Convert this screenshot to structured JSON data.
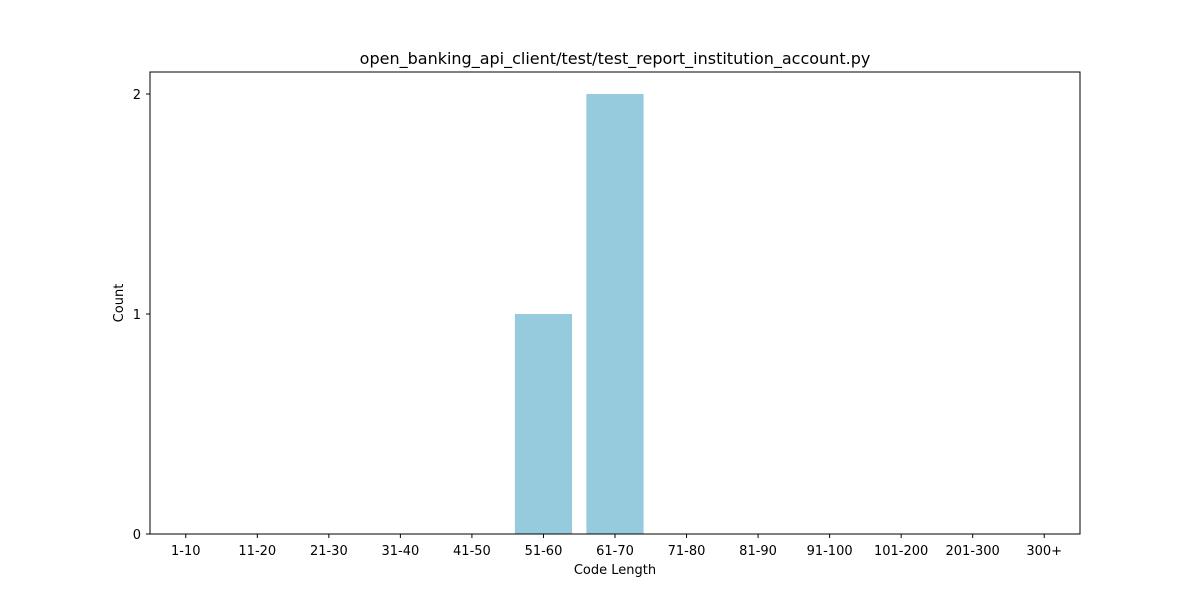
{
  "chart_data": {
    "type": "bar",
    "title": "open_banking_api_client/test/test_report_institution_account.py",
    "xlabel": "Code Length",
    "ylabel": "Count",
    "categories": [
      "1-10",
      "11-20",
      "21-30",
      "31-40",
      "41-50",
      "51-60",
      "61-70",
      "71-80",
      "81-90",
      "91-100",
      "101-200",
      "201-300",
      "300+"
    ],
    "values": [
      0,
      0,
      0,
      0,
      0,
      1,
      2,
      0,
      0,
      0,
      0,
      0,
      0
    ],
    "ylim": [
      0,
      2.1
    ],
    "yticks": [
      0,
      1,
      2
    ],
    "grid": false,
    "legend": "none",
    "bar_color": "#96cadd"
  }
}
